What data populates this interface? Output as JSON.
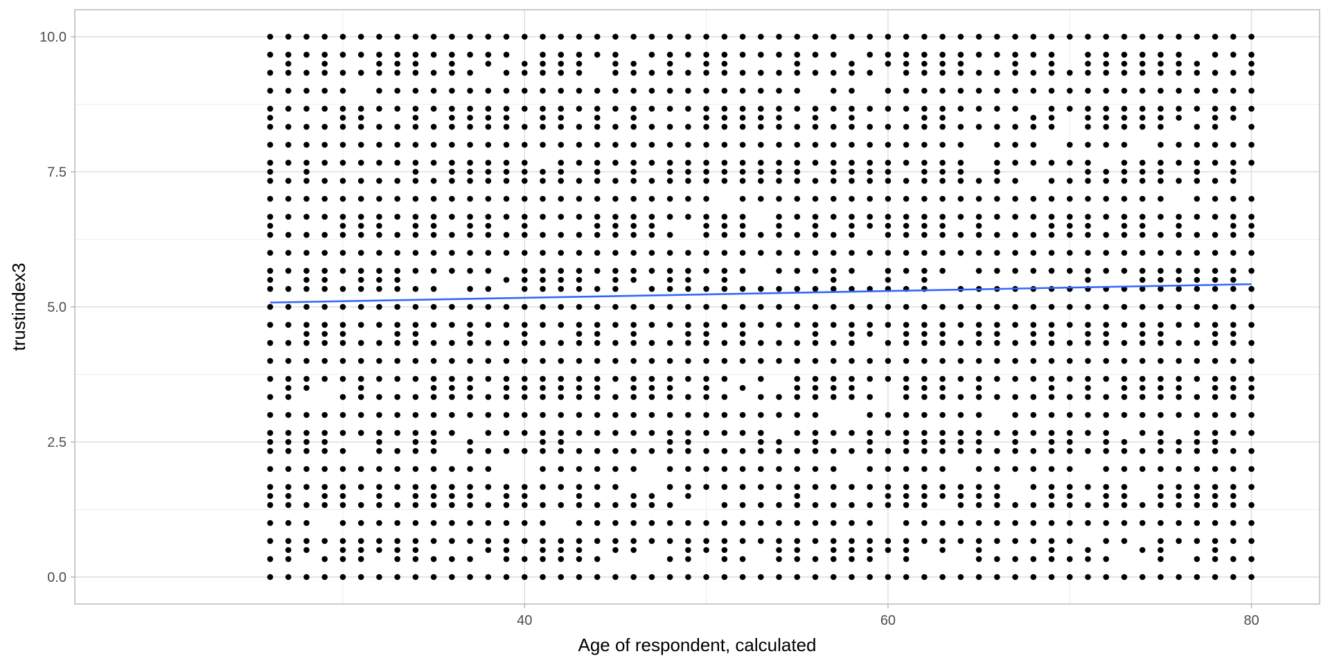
{
  "chart_data": {
    "type": "scatter",
    "title": "",
    "xlabel": "Age of respondent, calculated",
    "ylabel": "trustindex3",
    "xlim": [
      15.25,
      83.75
    ],
    "ylim": [
      -0.5,
      10.5
    ],
    "x_ticks": [
      40,
      60,
      80
    ],
    "x_minor_ticks": [
      30,
      50,
      70
    ],
    "y_ticks": [
      0.0,
      2.5,
      5.0,
      7.5,
      10.0
    ],
    "y_tick_labels": [
      "0.0",
      "2.5",
      "5.0",
      "7.5",
      "10.0"
    ],
    "y_minor_ticks": [
      1.25,
      3.75,
      6.25,
      8.75
    ],
    "grid": true,
    "theme": "light",
    "point_color": "#000000",
    "x_ages": {
      "start": 26,
      "end": 80,
      "step": 1
    },
    "y_levels": [
      0.0,
      0.333,
      0.5,
      0.667,
      1.0,
      1.333,
      1.5,
      1.667,
      2.0,
      2.333,
      2.5,
      2.667,
      3.0,
      3.333,
      3.5,
      3.667,
      4.0,
      4.333,
      4.5,
      4.667,
      5.0,
      5.333,
      5.5,
      5.667,
      6.0,
      6.333,
      6.5,
      6.667,
      7.0,
      7.333,
      7.5,
      7.667,
      8.0,
      8.333,
      8.5,
      8.667,
      9.0,
      9.333,
      9.5,
      9.667,
      10.0
    ],
    "y_levels_common": [
      0.0,
      0.667,
      1.0,
      1.333,
      1.667,
      2.0,
      2.333,
      2.667,
      3.0,
      3.333,
      3.667,
      4.0,
      4.333,
      4.667,
      5.0,
      5.333,
      5.667,
      6.0,
      6.333,
      6.667,
      7.0,
      7.333,
      7.667,
      8.0,
      8.333,
      8.667,
      9.0,
      9.333,
      9.667,
      10.0
    ],
    "trend_line": {
      "color": "#3366ff",
      "x": [
        26,
        80
      ],
      "y": [
        5.08,
        5.42
      ]
    }
  }
}
